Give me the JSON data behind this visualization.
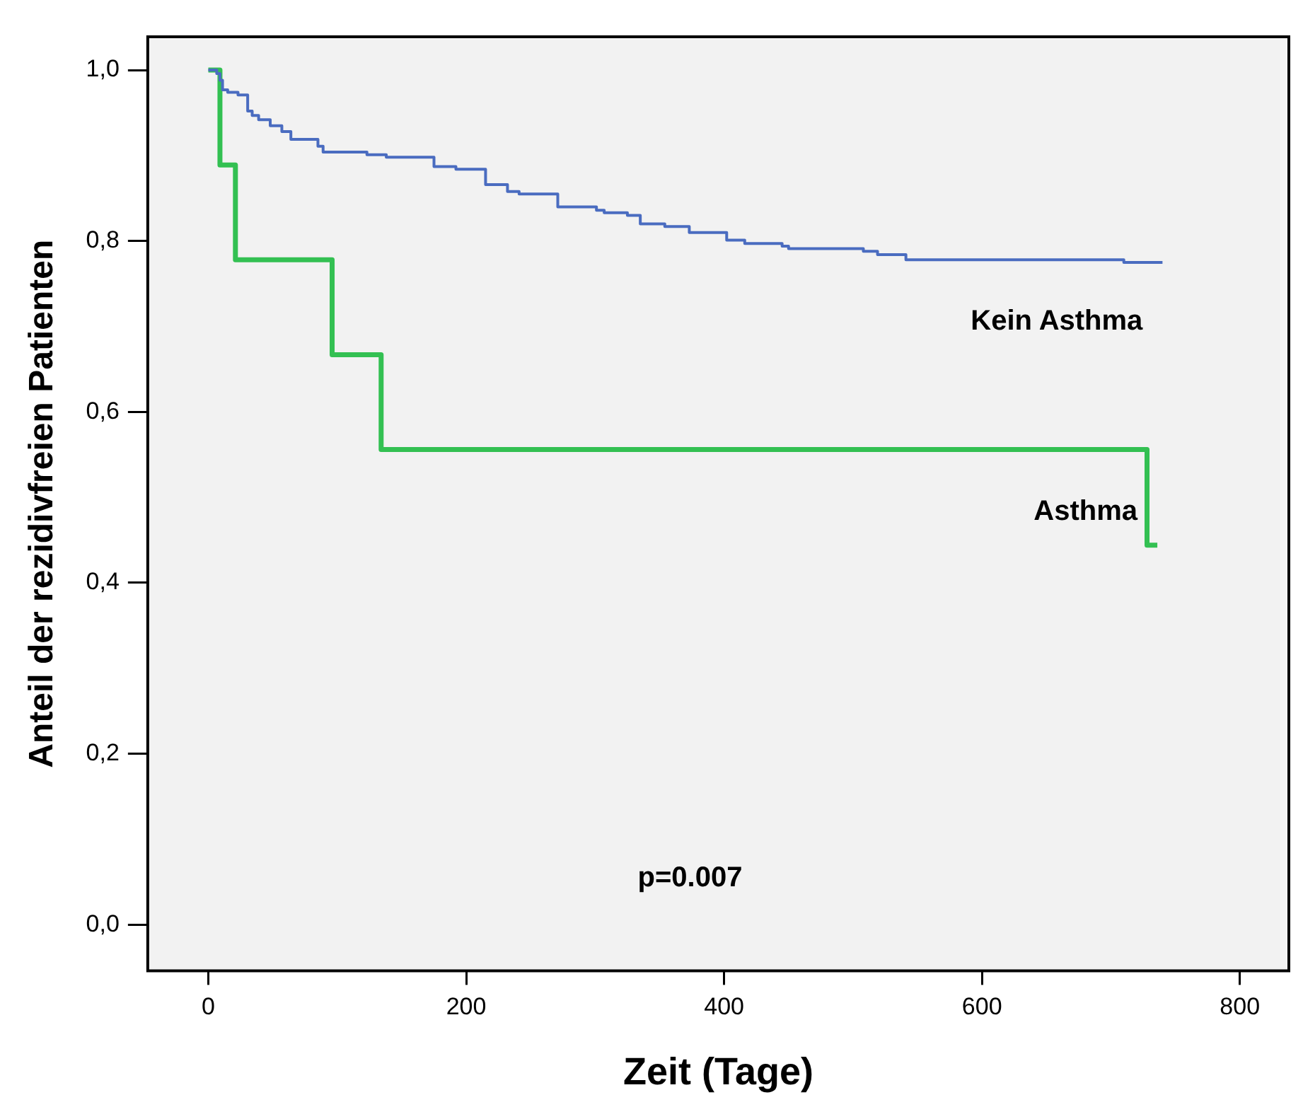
{
  "chart_data": {
    "type": "step",
    "xlabel": "Zeit (Tage)",
    "ylabel": "Anteil der rezidivfreien Patienten",
    "xlim": [
      -47,
      838
    ],
    "ylim": [
      -0.054,
      1.039
    ],
    "xticks": [
      0,
      200,
      400,
      600,
      800
    ],
    "yticks": [
      {
        "value": 0,
        "label": "0,0"
      },
      {
        "value": 0.2,
        "label": "0,2"
      },
      {
        "value": 0.4,
        "label": "0,4"
      },
      {
        "value": 0.6,
        "label": "0,6"
      },
      {
        "value": 0.8,
        "label": "0,8"
      },
      {
        "value": 1,
        "label": "1,0"
      }
    ],
    "grid": false,
    "legend": false,
    "annotations": [
      "p=0.007"
    ],
    "series": [
      {
        "name": "Kein Asthma",
        "color": "#4a6cc0",
        "x": [
          0,
          6.5,
          9,
          11,
          15,
          23,
          30.5,
          34,
          39,
          48,
          57,
          64,
          85,
          89,
          123,
          138,
          175,
          192,
          215,
          232,
          241,
          271,
          301,
          307,
          325,
          335,
          354,
          373,
          402,
          416,
          445,
          450,
          508,
          519,
          541,
          710,
          740
        ],
        "values": [
          1,
          0.996,
          0.988,
          0.977,
          0.974,
          0.971,
          0.952,
          0.947,
          0.942,
          0.935,
          0.928,
          0.919,
          0.911,
          0.904,
          0.901,
          0.898,
          0.887,
          0.884,
          0.866,
          0.858,
          0.855,
          0.84,
          0.836,
          0.833,
          0.83,
          0.82,
          0.817,
          0.81,
          0.801,
          0.797,
          0.794,
          0.791,
          0.788,
          0.784,
          0.778,
          0.775,
          0.775
        ]
      },
      {
        "name": "Asthma",
        "color": "#33c052",
        "x": [
          0,
          9,
          21,
          96,
          134,
          728,
          736
        ],
        "values": [
          1,
          0.889,
          0.778,
          0.667,
          0.556,
          0.444,
          0.444
        ]
      }
    ]
  }
}
